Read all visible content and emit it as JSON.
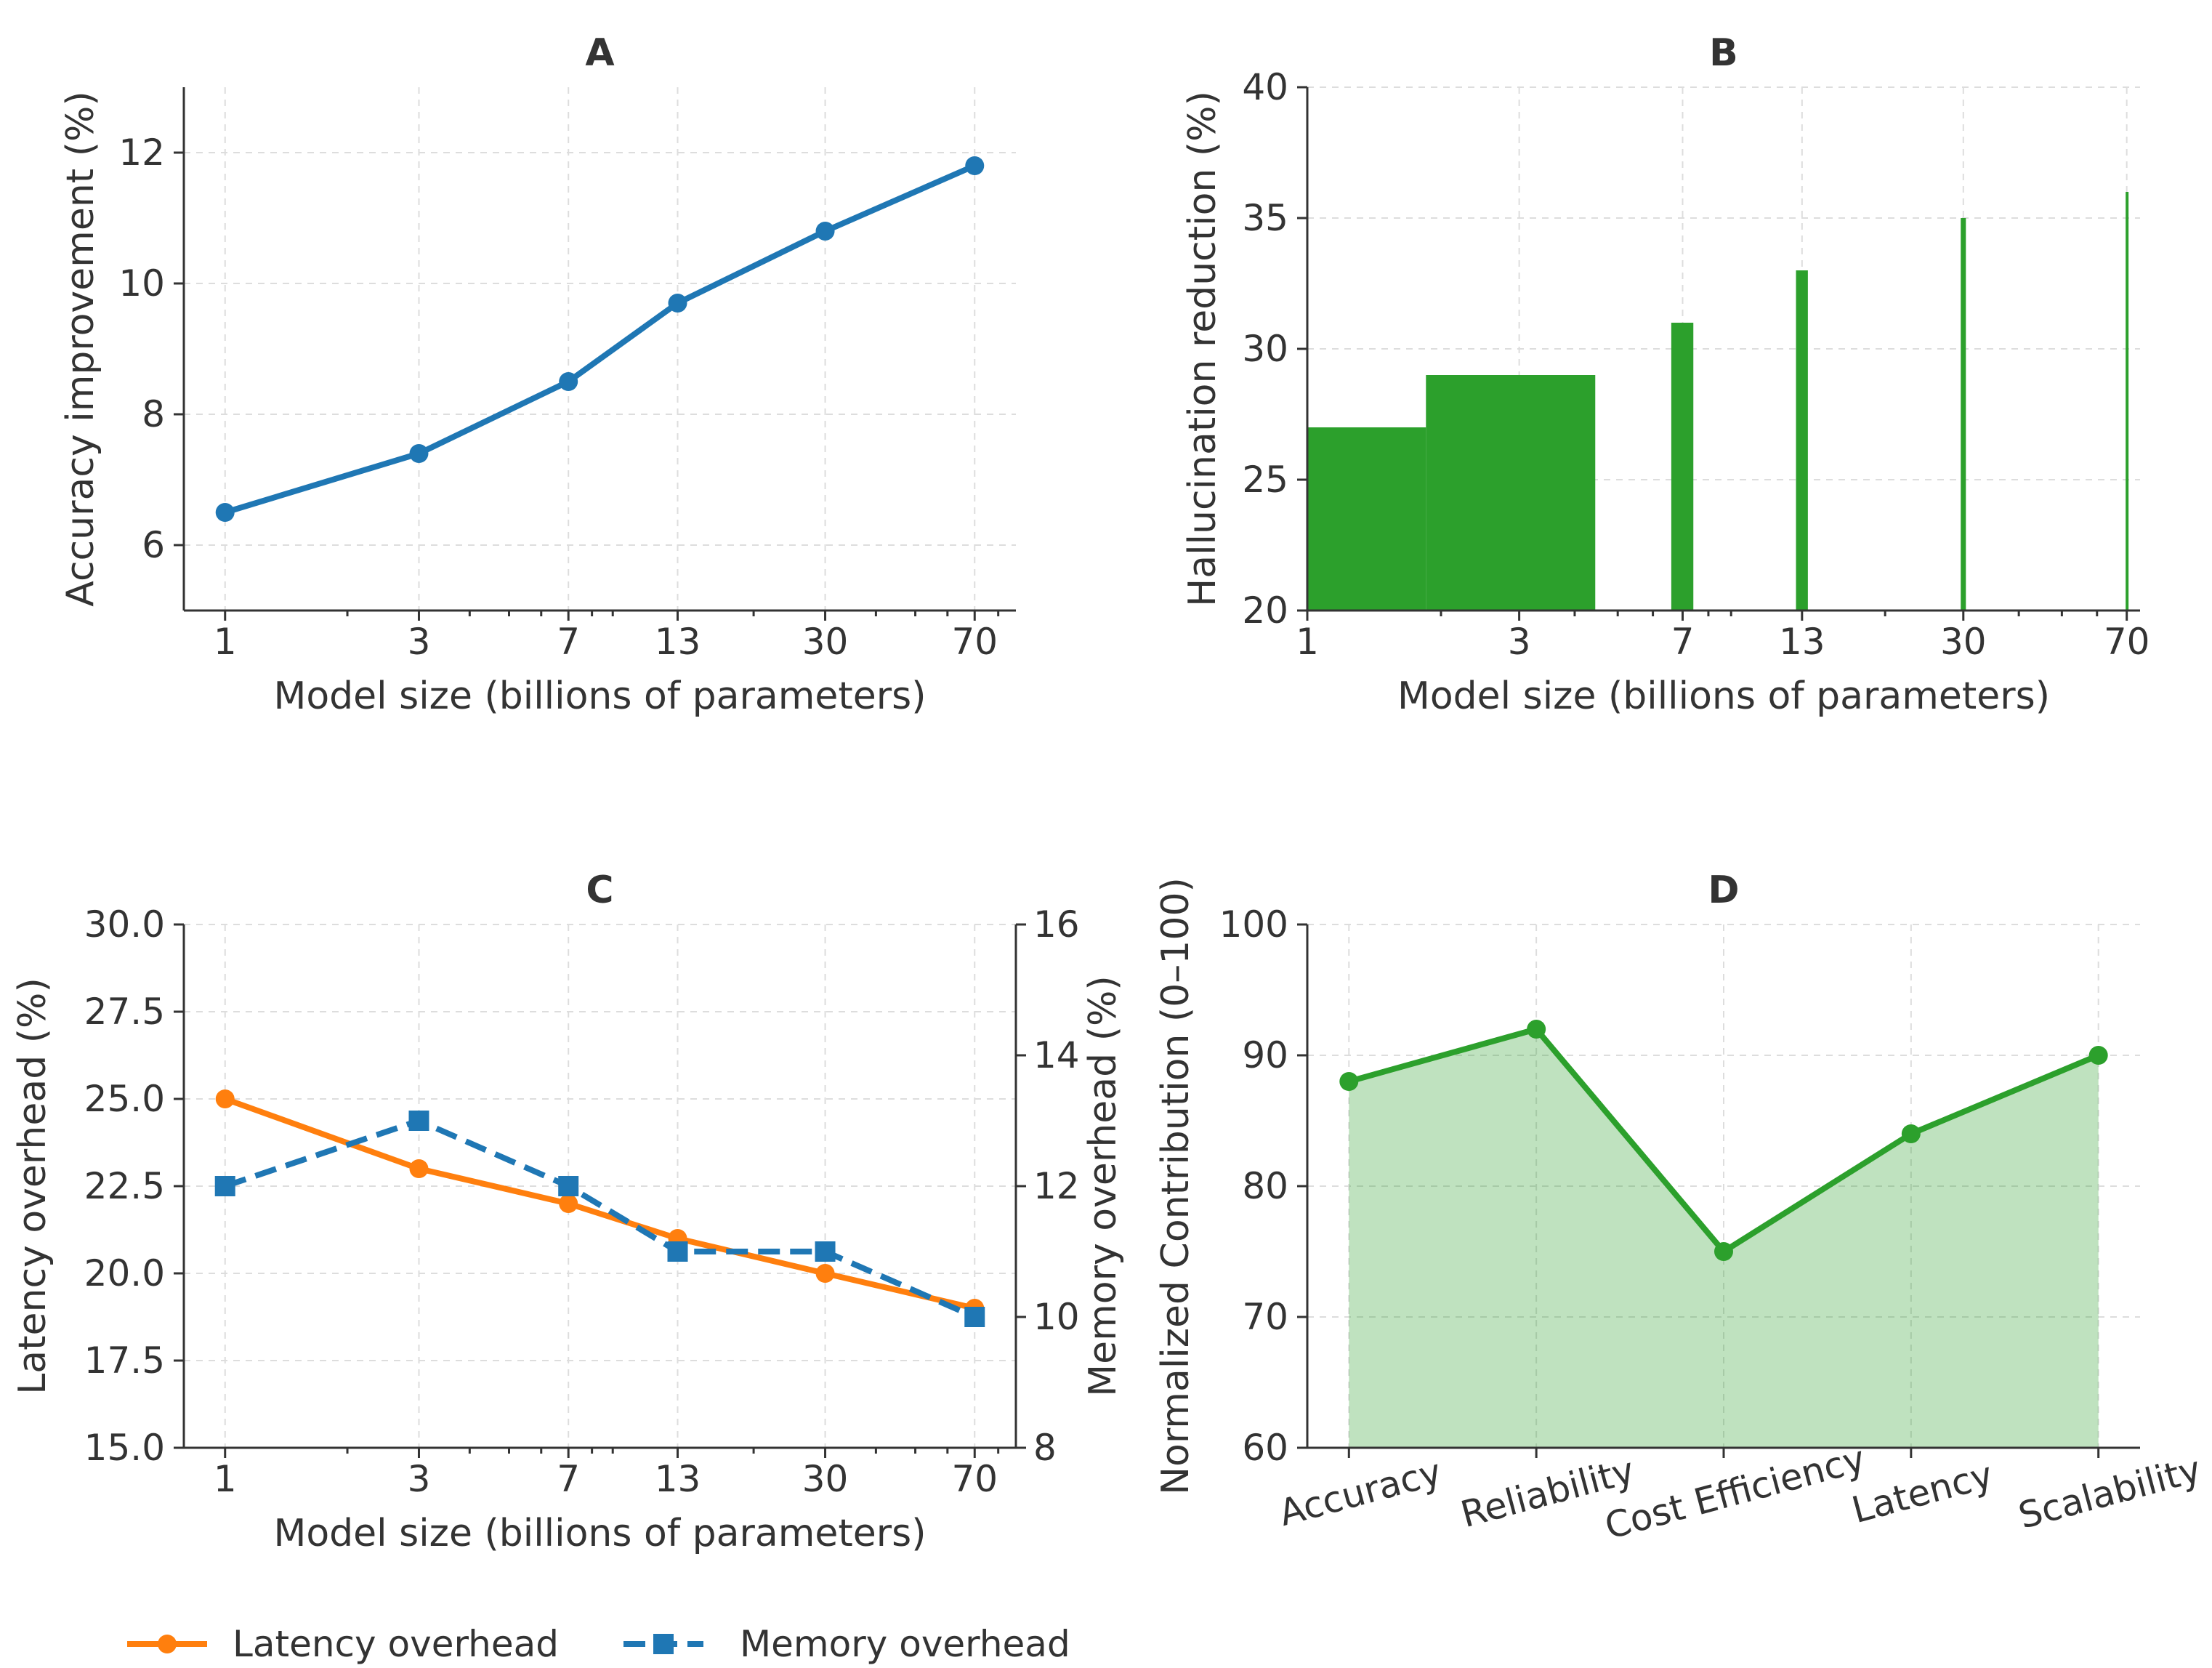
{
  "legend": [
    {
      "label": "Latency overhead",
      "color": "#ff7f0e",
      "marker": "circle",
      "dash": "solid"
    },
    {
      "label": "Memory overhead",
      "color": "#1f77b4",
      "marker": "square",
      "dash": "dashed"
    }
  ],
  "chart_data": [
    {
      "panel": "A",
      "type": "line",
      "title": "A",
      "xlabel": "Model size (billions of parameters)",
      "ylabel": "Accuracy improvement (%)",
      "x_scale": "log",
      "xticks": [
        1,
        3,
        7,
        13,
        30,
        70
      ],
      "xtick_labels": [
        "1",
        "3",
        "7",
        "13",
        "30",
        "70"
      ],
      "yticks": [
        6,
        8,
        10,
        12
      ],
      "ytick_labels": [
        "6",
        "8",
        "10",
        "12"
      ],
      "ylim": [
        5,
        13
      ],
      "grid": true,
      "color": "#1f77b4",
      "x": [
        1,
        3,
        7,
        13,
        30,
        70
      ],
      "y": [
        6.5,
        7.4,
        8.5,
        9.7,
        10.8,
        11.8
      ]
    },
    {
      "panel": "B",
      "type": "bar",
      "title": "B",
      "xlabel": "Model size (billions of parameters)",
      "ylabel": "Hallucination reduction (%)",
      "x_scale": "log",
      "xticks": [
        1,
        3,
        7,
        13,
        30,
        70
      ],
      "xtick_labels": [
        "1",
        "3",
        "7",
        "13",
        "30",
        "70"
      ],
      "yticks": [
        20,
        25,
        30,
        35,
        40
      ],
      "ytick_labels": [
        "20",
        "25",
        "30",
        "35",
        "40"
      ],
      "ylim": [
        20,
        40
      ],
      "grid": true,
      "color": "#2ca02c",
      "x": [
        1,
        3,
        7,
        13,
        30,
        70
      ],
      "values": [
        27,
        29,
        31,
        33,
        35,
        36
      ]
    },
    {
      "panel": "C",
      "type": "line",
      "title": "C",
      "xlabel": "Model size (billions of parameters)",
      "ylabel": "Latency overhead (%)",
      "y2label": "Memory overhead (%)",
      "x_scale": "log",
      "xticks": [
        1,
        3,
        7,
        13,
        30,
        70
      ],
      "xtick_labels": [
        "1",
        "3",
        "7",
        "13",
        "30",
        "70"
      ],
      "yticks": [
        15.0,
        17.5,
        20.0,
        22.5,
        25.0,
        27.5,
        30.0
      ],
      "ytick_labels": [
        "15.0",
        "17.5",
        "20.0",
        "22.5",
        "25.0",
        "27.5",
        "30.0"
      ],
      "ylim": [
        15,
        30
      ],
      "y2ticks": [
        8,
        10,
        12,
        14,
        16
      ],
      "y2tick_labels": [
        "8",
        "10",
        "12",
        "14",
        "16"
      ],
      "y2lim": [
        8,
        16
      ],
      "grid": true,
      "series": [
        {
          "name": "Latency overhead",
          "axis": "left",
          "color": "#ff7f0e",
          "x": [
            1,
            3,
            7,
            13,
            30,
            70
          ],
          "values": [
            25,
            23,
            22,
            21,
            20,
            19
          ]
        },
        {
          "name": "Memory overhead",
          "axis": "right",
          "color": "#1f77b4",
          "x": [
            1,
            3,
            7,
            13,
            30,
            70
          ],
          "values": [
            12,
            13,
            12,
            11,
            11,
            10
          ]
        }
      ]
    },
    {
      "panel": "D",
      "type": "area",
      "title": "D",
      "xlabel": "",
      "ylabel": "Normalized Contribution (0–100)",
      "categories": [
        "Accuracy",
        "Reliability",
        "Cost Efficiency",
        "Latency",
        "Scalability"
      ],
      "values": [
        88,
        92,
        75,
        84,
        90
      ],
      "yticks": [
        60,
        70,
        80,
        90,
        100
      ],
      "ytick_labels": [
        "60",
        "70",
        "80",
        "90",
        "100"
      ],
      "ylim": [
        60,
        100
      ],
      "grid": true,
      "color": "#2ca02c"
    }
  ]
}
